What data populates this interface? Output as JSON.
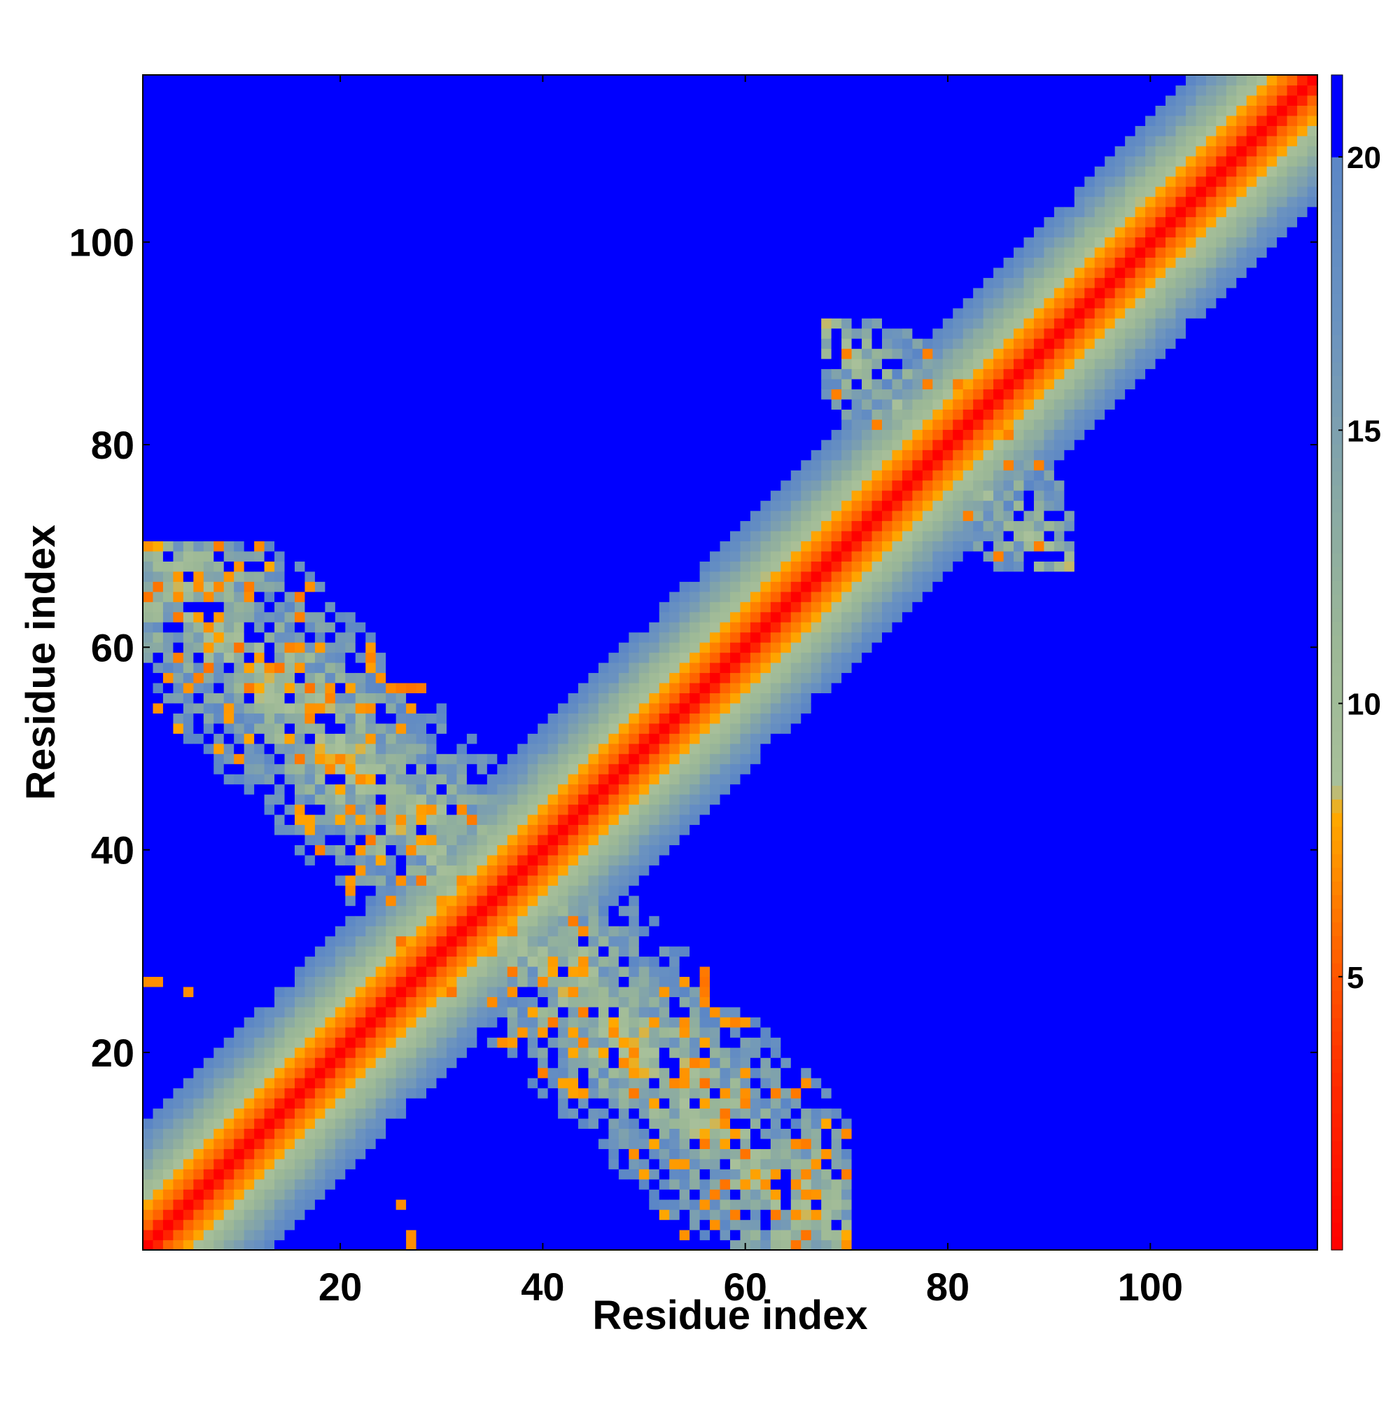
{
  "chart_data": {
    "type": "heatmap",
    "title": "",
    "xlabel": "Residue index",
    "ylabel": "Residue index",
    "xlim": [
      0.5,
      116.5
    ],
    "ylim": [
      0.5,
      116.5
    ],
    "n_residues": 116,
    "x_ticks": [
      20,
      40,
      60,
      80,
      100
    ],
    "y_ticks": [
      20,
      40,
      60,
      80,
      100
    ],
    "colorbar": {
      "range": [
        0,
        21.5
      ],
      "ticks": [
        5,
        10,
        15,
        20
      ],
      "cutoff_above": 20,
      "stops": [
        {
          "value": 0,
          "color": "#ff0000"
        },
        {
          "value": 3,
          "color": "#ff2a00"
        },
        {
          "value": 5,
          "color": "#ff5500"
        },
        {
          "value": 6.5,
          "color": "#ff8000"
        },
        {
          "value": 8,
          "color": "#ffaa00"
        },
        {
          "value": 8.5,
          "color": "#a8c09a"
        },
        {
          "value": 11,
          "color": "#9cb896"
        },
        {
          "value": 14,
          "color": "#86a7a6"
        },
        {
          "value": 17,
          "color": "#6a92c0"
        },
        {
          "value": 20,
          "color": "#5b86c6"
        },
        {
          "value": 21.5,
          "color": "#0000ff"
        }
      ]
    },
    "background_value": 21,
    "features": {
      "diagonal_band": "distance grows with |i-j|: about 0 on the diagonal, 5-8 for |i-j| of 2-4, 10-20 for |i-j| up to about 12",
      "antiparallel_region": "residues 1-35 paired antiparallel with residues 30-70, distances 5-20",
      "second_region": "residues 68-86 paired with residues 74-92, distances 8-20",
      "isolated_contacts": [
        {
          "i": 1,
          "j": 27,
          "value": 7
        },
        {
          "i": 2,
          "j": 27,
          "value": 7
        },
        {
          "i": 5,
          "j": 26,
          "value": 7
        }
      ]
    }
  }
}
